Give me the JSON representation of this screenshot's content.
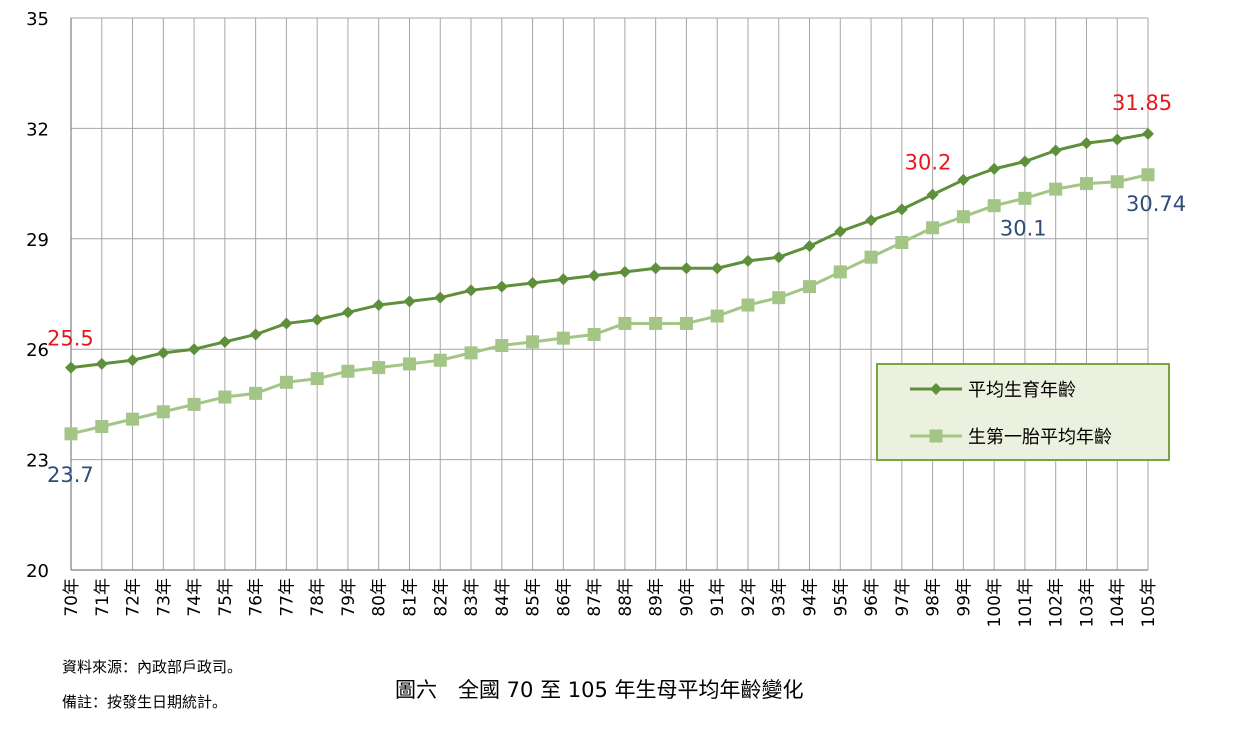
{
  "chart_data": {
    "type": "line",
    "title": "",
    "xlabel": "",
    "ylabel": "",
    "ylim": [
      20,
      35
    ],
    "yticks": [
      20,
      23,
      26,
      29,
      32,
      35
    ],
    "grid": true,
    "legend_position": "right",
    "categories": [
      "70年",
      "71年",
      "72年",
      "73年",
      "74年",
      "75年",
      "76年",
      "77年",
      "78年",
      "79年",
      "80年",
      "81年",
      "82年",
      "83年",
      "84年",
      "85年",
      "86年",
      "87年",
      "88年",
      "89年",
      "90年",
      "91年",
      "92年",
      "93年",
      "94年",
      "95年",
      "96年",
      "97年",
      "98年",
      "99年",
      "100年",
      "101年",
      "102年",
      "103年",
      "104年",
      "105年"
    ],
    "series": [
      {
        "name": "平均生育年齡",
        "color": "#5e8f3a",
        "marker": "diamond",
        "values": [
          25.5,
          25.6,
          25.7,
          25.9,
          26.0,
          26.2,
          26.4,
          26.7,
          26.8,
          27.0,
          27.2,
          27.3,
          27.4,
          27.6,
          27.7,
          27.8,
          27.9,
          28.0,
          28.1,
          28.2,
          28.2,
          28.2,
          28.4,
          28.5,
          28.8,
          29.2,
          29.5,
          29.8,
          30.2,
          30.6,
          30.9,
          31.1,
          31.4,
          31.6,
          31.7,
          31.85
        ]
      },
      {
        "name": "生第一胎平均年齡",
        "color": "#a3c585",
        "marker": "square",
        "values": [
          23.7,
          23.9,
          24.1,
          24.3,
          24.5,
          24.7,
          24.8,
          25.1,
          25.2,
          25.4,
          25.5,
          25.6,
          25.7,
          25.9,
          26.1,
          26.2,
          26.3,
          26.4,
          26.7,
          26.7,
          26.7,
          26.9,
          27.2,
          27.4,
          27.7,
          28.1,
          28.5,
          28.9,
          29.3,
          29.6,
          29.9,
          30.1,
          30.35,
          30.5,
          30.55,
          30.74
        ]
      }
    ],
    "annotations": [
      {
        "text": "25.5",
        "series": 0,
        "index": 0,
        "color": "#e8191e"
      },
      {
        "text": "23.7",
        "series": 1,
        "index": 0,
        "color": "#2e4e78"
      },
      {
        "text": "30.2",
        "series": 0,
        "index": 28,
        "color": "#e8191e"
      },
      {
        "text": "30.1",
        "series": 1,
        "index": 31,
        "color": "#2e4e78"
      },
      {
        "text": "31.85",
        "series": 0,
        "index": 35,
        "color": "#e8191e"
      },
      {
        "text": "30.74",
        "series": 1,
        "index": 35,
        "color": "#2e4e78"
      }
    ]
  },
  "notes": {
    "source": "資料來源：內政部戶政司。",
    "remark": "備註：按發生日期統計。"
  },
  "caption": "圖六　全國 70 至 105 年生母平均年齡變化",
  "legend_box": {
    "bg": "#ebf1de",
    "border": "#76a643"
  }
}
